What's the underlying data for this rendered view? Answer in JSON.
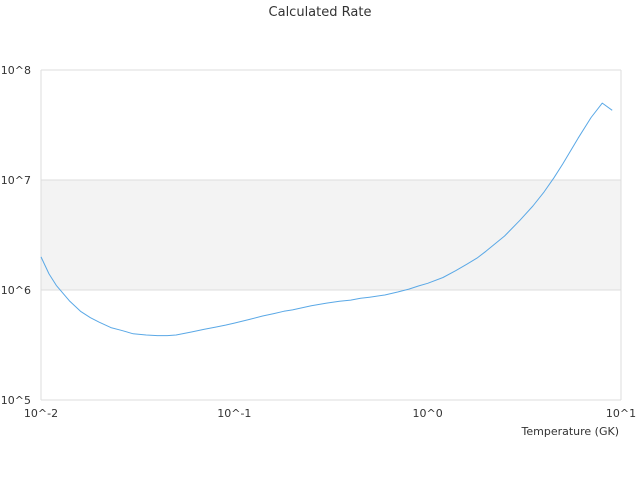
{
  "chart_data": {
    "type": "line",
    "title": "Calculated Rate",
    "xlabel": "Temperature (GK)",
    "ylabel": "",
    "x_scale": "log",
    "y_scale": "log",
    "xlim": [
      0.01,
      10
    ],
    "ylim": [
      100000,
      100000000
    ],
    "x_ticks": [
      {
        "value": 0.01,
        "label": "10^-2"
      },
      {
        "value": 0.1,
        "label": "10^-1"
      },
      {
        "value": 1,
        "label": "10^0"
      },
      {
        "value": 10,
        "label": "10^1"
      }
    ],
    "y_ticks": [
      {
        "value": 100000,
        "label": "10^5"
      },
      {
        "value": 1000000,
        "label": "10^6"
      },
      {
        "value": 10000000,
        "label": "10^7"
      },
      {
        "value": 100000000,
        "label": "10^8"
      }
    ],
    "grid": true,
    "legend": "none",
    "colors": {
      "line": "#5aa8e6",
      "band_shade": "#f3f3f3",
      "grid": "#dddddd",
      "text": "#333333"
    },
    "series": [
      {
        "x": [
          0.01,
          0.011,
          0.012,
          0.014,
          0.016,
          0.018,
          0.02,
          0.023,
          0.026,
          0.03,
          0.035,
          0.04,
          0.045,
          0.05,
          0.06,
          0.07,
          0.08,
          0.09,
          0.1,
          0.12,
          0.14,
          0.16,
          0.18,
          0.2,
          0.25,
          0.3,
          0.35,
          0.4,
          0.45,
          0.5,
          0.6,
          0.7,
          0.8,
          0.9,
          1.0,
          1.2,
          1.4,
          1.6,
          1.8,
          2.0,
          2.5,
          3.0,
          3.5,
          4.0,
          4.5,
          5.0,
          6.0,
          7.0,
          8.0,
          9.0
        ],
        "y": [
          2000000,
          1400000,
          1100000,
          800000,
          640000,
          560000,
          510000,
          455000,
          430000,
          400000,
          390000,
          385000,
          385000,
          390000,
          415000,
          440000,
          460000,
          480000,
          500000,
          540000,
          580000,
          610000,
          640000,
          660000,
          720000,
          760000,
          790000,
          810000,
          840000,
          860000,
          900000,
          960000,
          1020000,
          1090000,
          1150000,
          1300000,
          1500000,
          1720000,
          1950000,
          2250000,
          3100000,
          4300000,
          5800000,
          7800000,
          10500000,
          14000000,
          24000000,
          37000000,
          50000000,
          43000000
        ]
      }
    ]
  }
}
